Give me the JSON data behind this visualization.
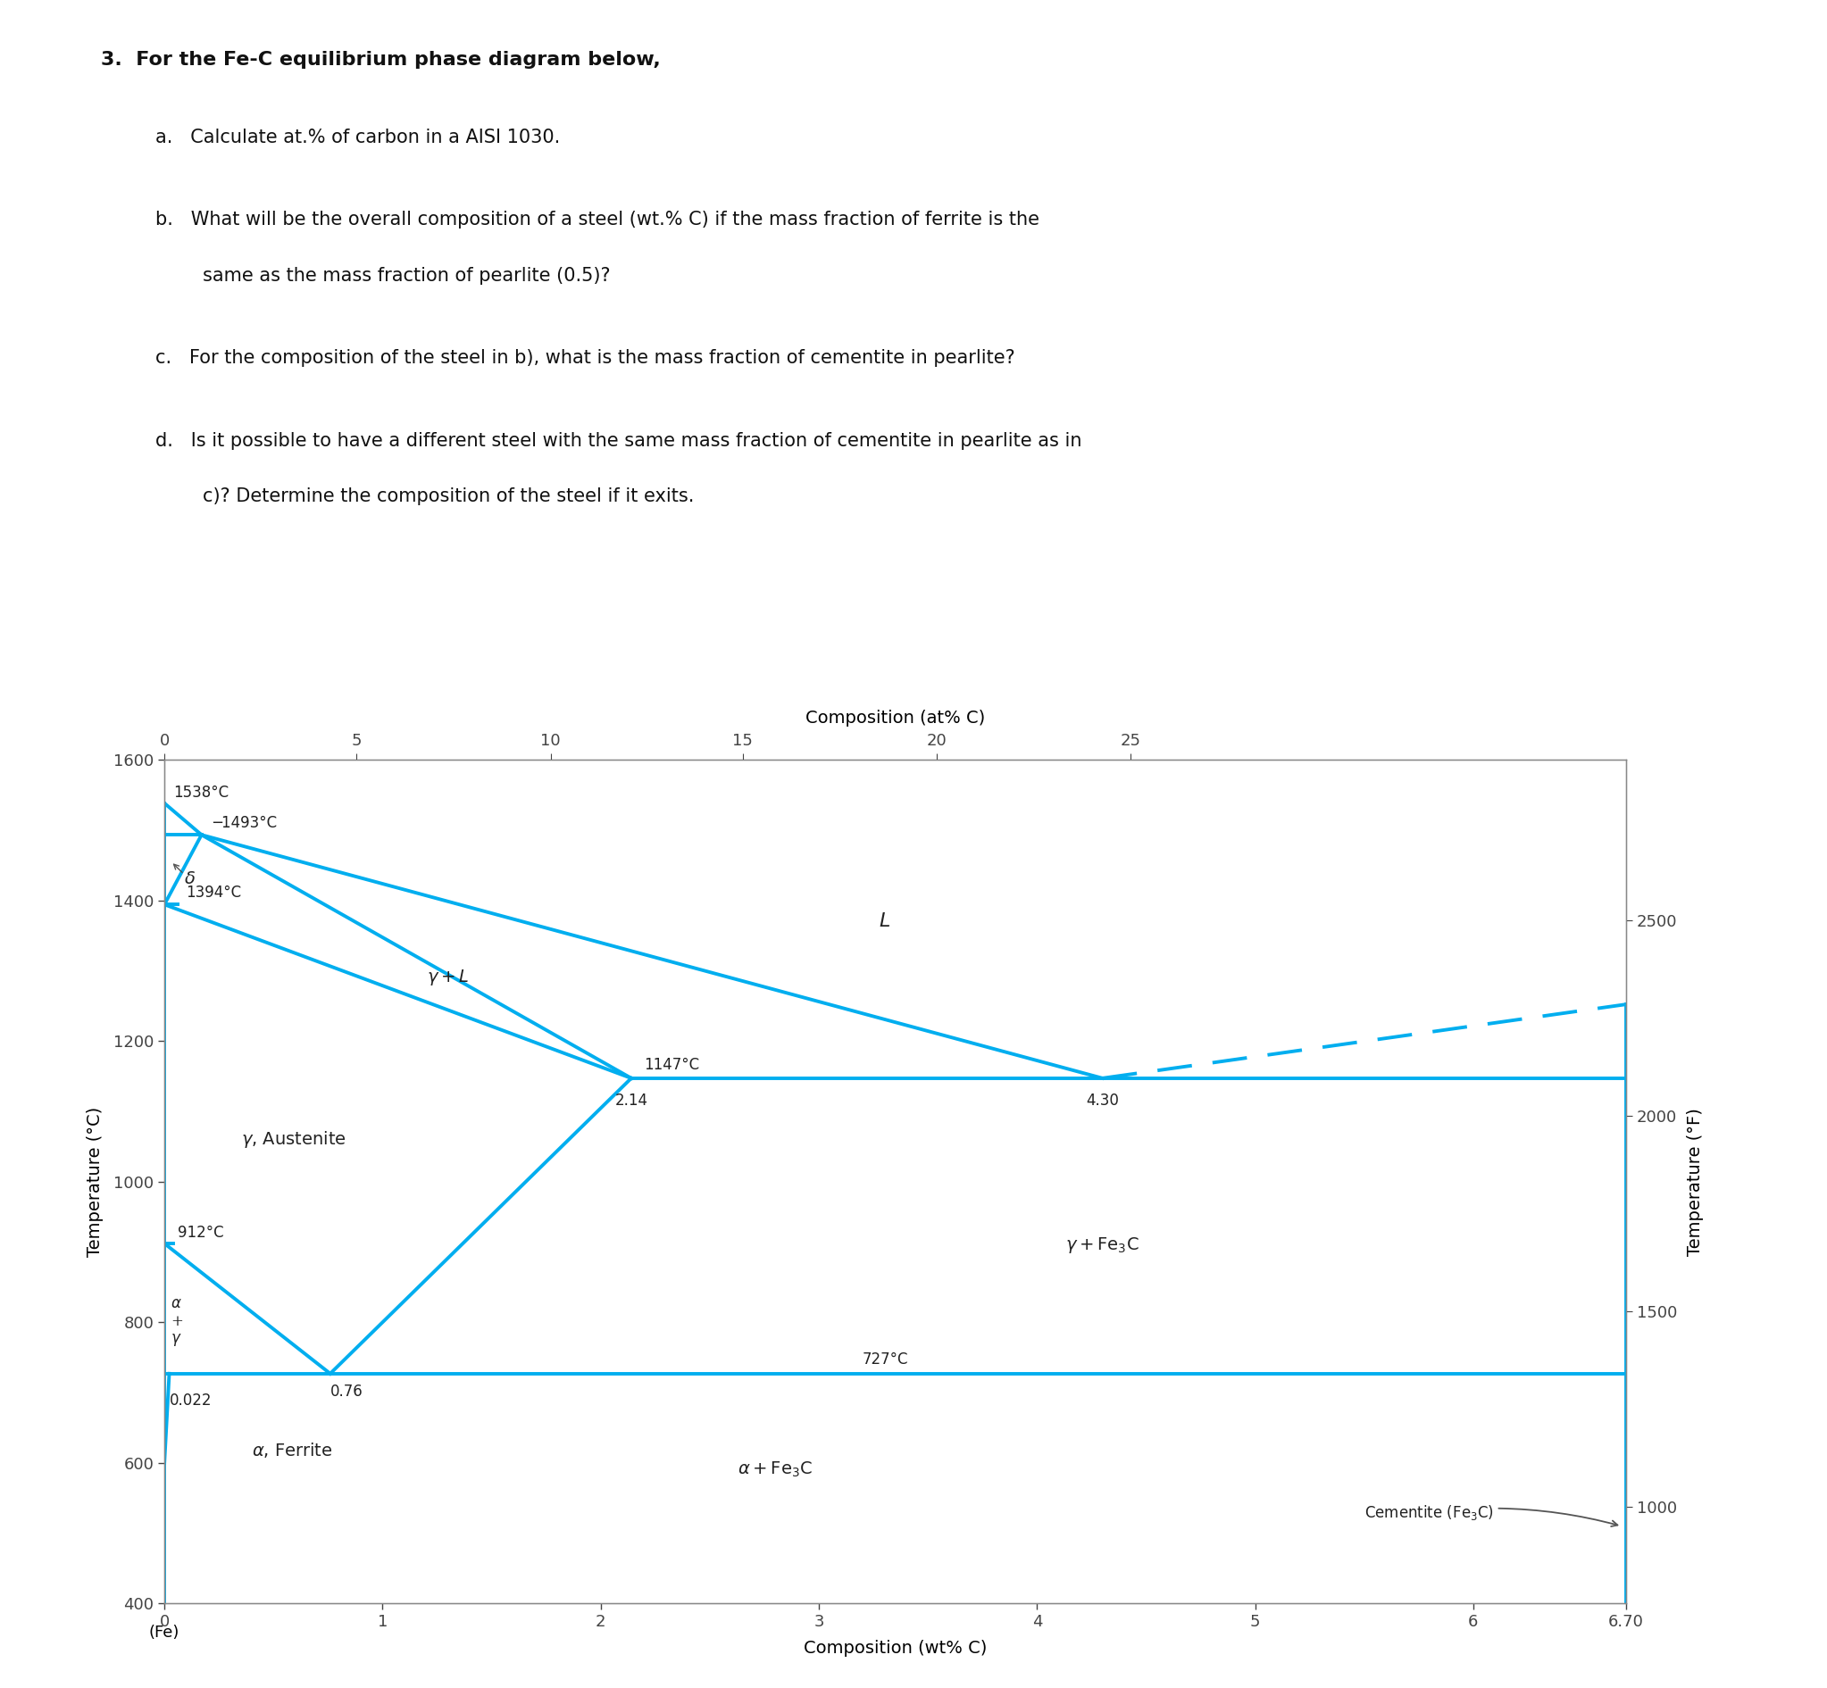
{
  "line_color": "#00AEEF",
  "line_width": 2.8,
  "text_color": "#222222",
  "gray_color": "#666666",
  "xlim": [
    0,
    6.7
  ],
  "ylim": [
    400,
    1600
  ],
  "xlabel": "Composition (wt% C)",
  "ylabel_left": "Temperature (°C)",
  "ylabel_right": "Temperature (°F)",
  "top_xlabel": "Composition (at% C)",
  "left_yticks": [
    400,
    600,
    800,
    1000,
    1200,
    1400,
    1600
  ],
  "bottom_xticks": [
    0,
    1,
    2,
    3,
    4,
    5,
    6,
    6.7
  ],
  "right_ytick_temps_C": [
    538,
    816,
    1093,
    1371
  ],
  "right_ytick_labels": [
    "1000",
    "1500",
    "2000",
    "2500"
  ],
  "top_xtick_wt": [
    0,
    0.88,
    1.77,
    2.65,
    3.54,
    4.43
  ],
  "top_xtick_labels": [
    "0",
    "5",
    "10",
    "15",
    "20",
    "25"
  ],
  "question_title": "3.  For the Fe-C equilibrium phase diagram below,",
  "sub_a": "a.   Calculate at.% of carbon in a AISI 1030.",
  "sub_b_1": "b.   What will be the overall composition of a steel (wt.% C) if the mass fraction of ferrite is the",
  "sub_b_2": "        same as the mass fraction of pearlite (0.5)?",
  "sub_c": "c.   For the composition of the steel in b), what is the mass fraction of cementite in pearlite?",
  "sub_d_1": "d.   Is it possible to have a different steel with the same mass fraction of cementite in pearlite as in",
  "sub_d_2": "        c)? Determine the composition of the steel if it exits."
}
